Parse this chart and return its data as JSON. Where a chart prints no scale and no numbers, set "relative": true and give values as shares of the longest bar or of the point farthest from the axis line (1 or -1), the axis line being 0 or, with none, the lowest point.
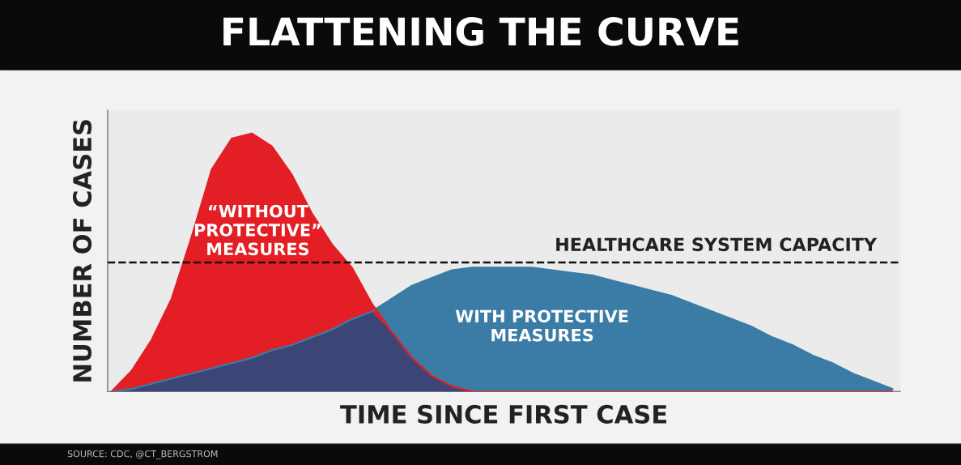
{
  "chart_data": {
    "type": "area",
    "title": "FLATTENING THE CURVE",
    "xlabel": "TIME SINCE FIRST CASE",
    "ylabel": "NUMBER OF CASES",
    "relative": true,
    "categories": [
      null,
      null,
      null,
      null,
      null,
      null,
      null,
      null,
      null,
      null,
      null,
      null,
      null,
      null,
      null,
      null,
      null,
      null,
      null,
      null,
      null,
      null,
      null,
      null,
      null,
      null,
      null,
      null,
      null,
      null,
      null,
      null,
      null,
      null,
      null,
      null,
      null,
      null,
      null,
      null
    ],
    "series": [
      {
        "name": "“WITHOUT\nPROTECTIVE”\nMEASURES",
        "color": "#e31e24",
        "values": [
          0,
          0.08,
          0.2,
          0.36,
          0.6,
          0.86,
          0.98,
          1.0,
          0.95,
          0.84,
          0.69,
          0.57,
          0.48,
          0.34,
          0.23,
          0.13,
          0.06,
          0.02,
          0,
          0,
          0,
          0,
          0,
          0,
          0,
          0,
          0,
          0,
          0,
          0,
          0,
          0,
          0,
          0,
          0,
          0,
          0,
          0,
          0,
          0
        ]
      },
      {
        "name": "WITH PROTECTIVE\nMEASURES",
        "color": "#3a7ca5",
        "values": [
          0,
          0.01,
          0.03,
          0.05,
          0.07,
          0.09,
          0.11,
          0.13,
          0.16,
          0.18,
          0.21,
          0.24,
          0.28,
          0.31,
          0.36,
          0.41,
          0.44,
          0.47,
          0.48,
          0.48,
          0.48,
          0.48,
          0.47,
          0.46,
          0.45,
          0.43,
          0.41,
          0.39,
          0.37,
          0.34,
          0.31,
          0.28,
          0.25,
          0.21,
          0.18,
          0.14,
          0.11,
          0.07,
          0.04,
          0.01
        ]
      }
    ],
    "ref_lines": [
      {
        "axis": "y",
        "value": 0.5,
        "label": "HEALTHCARE SYSTEM CAPACITY",
        "color": "#111111",
        "line_style": "dashed"
      }
    ],
    "annotations": [
      "SOURCE: CDC, @CT_BERGSTROM"
    ]
  }
}
